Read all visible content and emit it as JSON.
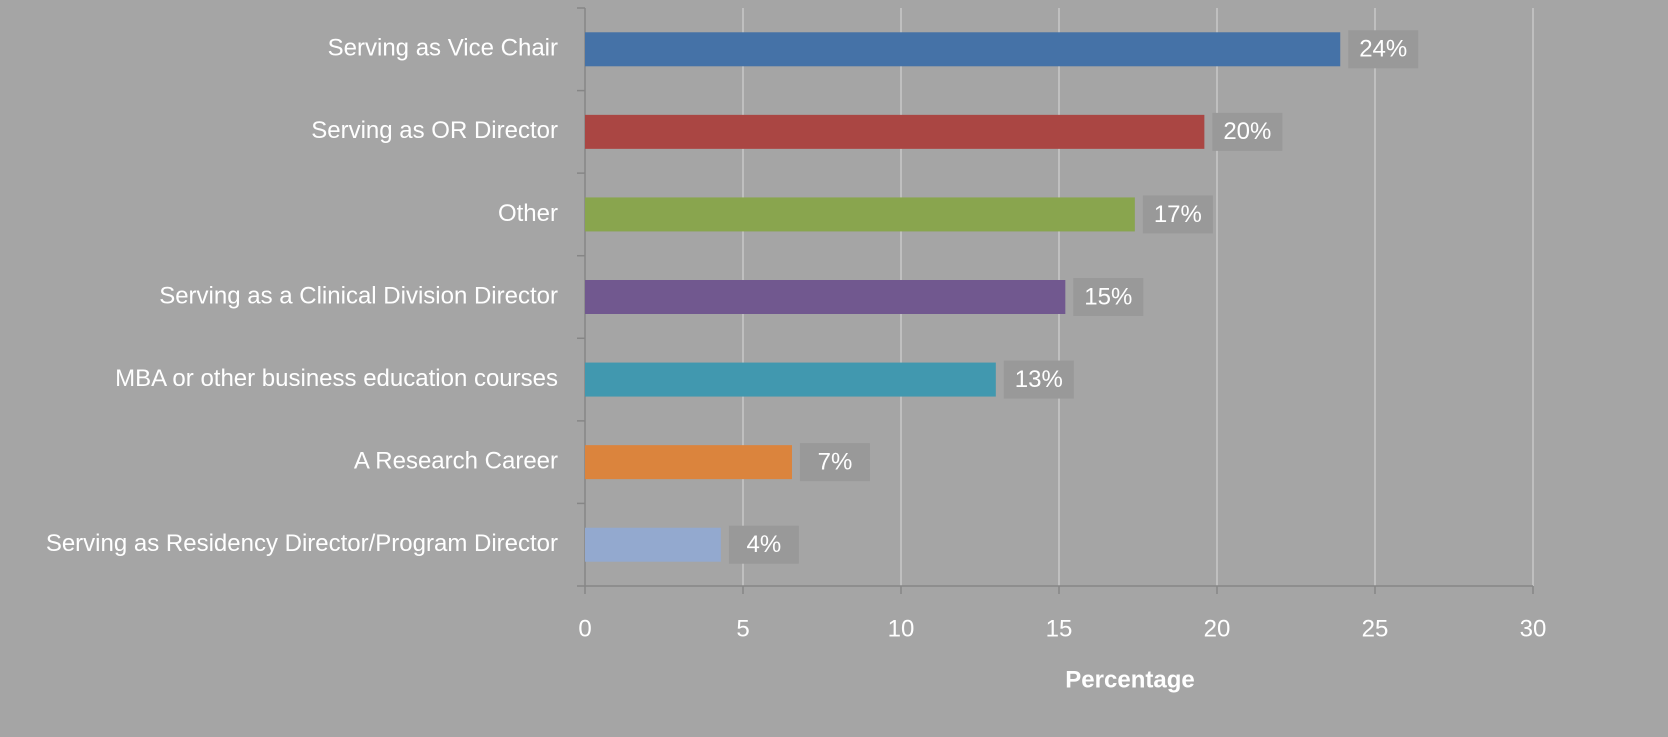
{
  "chart_data": {
    "type": "bar",
    "orientation": "horizontal",
    "x_label": "Percentage",
    "categories": [
      "Serving as Vice Chair",
      "Serving as OR Director",
      "Other",
      "Serving as a Clinical Division Director",
      "MBA or other business education courses",
      "A Research Career",
      "Serving as Residency Director/Program Director"
    ],
    "values": [
      23.9,
      19.6,
      17.4,
      15.2,
      13.0,
      6.55,
      4.3
    ],
    "value_labels": [
      "24%",
      "20%",
      "17%",
      "15%",
      "13%",
      "7%",
      "4%"
    ],
    "colors": [
      "#4572a7",
      "#aa4643",
      "#89a54e",
      "#71588f",
      "#4198af",
      "#db843d",
      "#93a9cf"
    ],
    "xlim": [
      0,
      30
    ],
    "xticks": [
      0,
      5,
      10,
      15,
      20,
      25,
      30
    ],
    "grid": true
  }
}
